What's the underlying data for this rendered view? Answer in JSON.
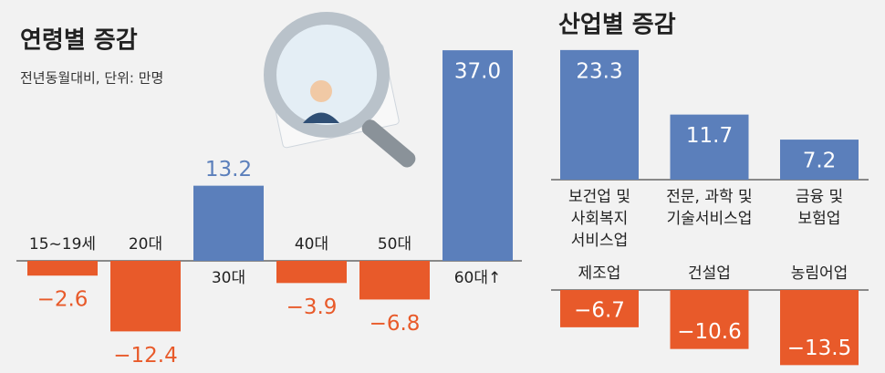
{
  "chart_data": [
    {
      "type": "bar",
      "title": "연령별 증감",
      "subtitle": "전년동월대비, 단위: 만명",
      "categories": [
        "15~19세",
        "20대",
        "30대",
        "40대",
        "50대",
        "60대↑"
      ],
      "values": [
        -2.6,
        -12.4,
        13.2,
        -3.9,
        -6.8,
        37.0
      ],
      "value_labels": [
        "−2.6",
        "−12.4",
        "13.2",
        "−3.9",
        "−6.8",
        "37.0"
      ],
      "positive_color": "#5b7fbb",
      "negative_color": "#e85a2a"
    },
    {
      "type": "bar",
      "title": "산업별 증감",
      "categories": [
        [
          "보건업 및",
          "사회복지",
          "서비스업"
        ],
        [
          "전문, 과학 및",
          "기술서비스업"
        ],
        [
          "금융 및",
          "보험업"
        ],
        [
          "제조업"
        ],
        [
          "건설업"
        ],
        [
          "농림어업"
        ]
      ],
      "values": [
        23.3,
        11.7,
        7.2,
        -6.7,
        -10.6,
        -13.5
      ],
      "value_labels": [
        "23.3",
        "11.7",
        "7.2",
        "−6.7",
        "−10.6",
        "−13.5"
      ],
      "positive_color": "#5b7fbb",
      "negative_color": "#e85a2a"
    }
  ]
}
